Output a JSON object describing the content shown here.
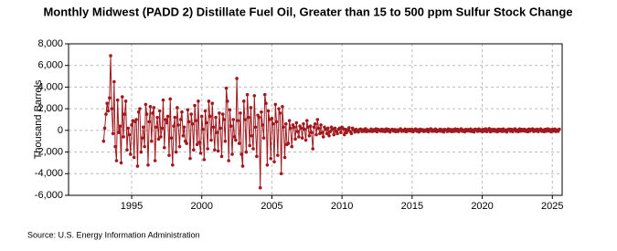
{
  "chart_data": {
    "type": "line",
    "title": "Monthly Midwest (PADD 2) Distillate Fuel Oil, Greater than 15 to 500 ppm Sulfur Stock Change",
    "ylabel": "Thousand Barrels",
    "source": "Source: U.S. Energy Information Administration",
    "xlim": [
      1990.5,
      2025.7
    ],
    "xticks": [
      1995,
      2000,
      2005,
      2010,
      2015,
      2020,
      2025
    ],
    "ylim": [
      -6000,
      8000
    ],
    "yticks": [
      {
        "value": -6000,
        "label": "-6,000"
      },
      {
        "value": -4000,
        "label": "-4,000"
      },
      {
        "value": -2000,
        "label": "-2,000"
      },
      0,
      {
        "value": 2000,
        "label": "2,000"
      },
      {
        "value": 4000,
        "label": "4,000"
      },
      {
        "value": 6000,
        "label": "6,000"
      },
      {
        "value": 8000,
        "label": "8,000"
      }
    ],
    "grid": true,
    "x": [
      1993,
      1993.08,
      1993.17,
      1993.25,
      1993.33,
      1993.42,
      1993.5,
      1993.58,
      1993.67,
      1993.75,
      1993.83,
      1993.92,
      1994,
      1994.08,
      1994.17,
      1994.25,
      1994.33,
      1994.42,
      1994.5,
      1994.58,
      1994.67,
      1994.75,
      1994.83,
      1994.92,
      1995,
      1995.08,
      1995.17,
      1995.25,
      1995.33,
      1995.42,
      1995.5,
      1995.58,
      1995.67,
      1995.75,
      1995.83,
      1995.92,
      1996,
      1996.08,
      1996.17,
      1996.25,
      1996.33,
      1996.42,
      1996.5,
      1996.58,
      1996.67,
      1996.75,
      1996.83,
      1996.92,
      1997,
      1997.08,
      1997.17,
      1997.25,
      1997.33,
      1997.42,
      1997.5,
      1997.58,
      1997.67,
      1997.75,
      1997.83,
      1997.92,
      1998,
      1998.08,
      1998.17,
      1998.25,
      1998.33,
      1998.42,
      1998.5,
      1998.58,
      1998.67,
      1998.75,
      1998.83,
      1998.92,
      1999,
      1999.08,
      1999.17,
      1999.25,
      1999.33,
      1999.42,
      1999.5,
      1999.58,
      1999.67,
      1999.75,
      1999.83,
      1999.92,
      2000,
      2000.08,
      2000.17,
      2000.25,
      2000.33,
      2000.42,
      2000.5,
      2000.58,
      2000.67,
      2000.75,
      2000.83,
      2000.92,
      2001,
      2001.08,
      2001.17,
      2001.25,
      2001.33,
      2001.42,
      2001.5,
      2001.58,
      2001.67,
      2001.75,
      2001.83,
      2001.92,
      2002,
      2002.08,
      2002.17,
      2002.25,
      2002.33,
      2002.42,
      2002.5,
      2002.58,
      2002.67,
      2002.75,
      2002.83,
      2002.92,
      2003,
      2003.08,
      2003.17,
      2003.25,
      2003.33,
      2003.42,
      2003.5,
      2003.58,
      2003.67,
      2003.75,
      2003.83,
      2003.92,
      2004,
      2004.08,
      2004.17,
      2004.25,
      2004.33,
      2004.42,
      2004.5,
      2004.58,
      2004.67,
      2004.75,
      2004.83,
      2004.92,
      2005,
      2005.08,
      2005.17,
      2005.25,
      2005.33,
      2005.42,
      2005.5,
      2005.58,
      2005.67,
      2005.75,
      2005.83,
      2005.92,
      2006,
      2006.08,
      2006.17,
      2006.25,
      2006.33,
      2006.42,
      2006.5,
      2006.58,
      2006.67,
      2006.75,
      2006.83,
      2006.92,
      2007,
      2007.08,
      2007.17,
      2007.25,
      2007.33,
      2007.42,
      2007.5,
      2007.58,
      2007.67,
      2007.75,
      2007.83,
      2007.92,
      2008,
      2008.08,
      2008.17,
      2008.25,
      2008.33,
      2008.42,
      2008.5,
      2008.58,
      2008.67,
      2008.75,
      2008.83,
      2008.92,
      2009,
      2009.08,
      2009.17,
      2009.25,
      2009.33,
      2009.42,
      2009.5,
      2009.58,
      2009.67,
      2009.75,
      2009.83,
      2009.92,
      2010,
      2010.08,
      2010.17,
      2010.25,
      2010.33,
      2010.42,
      2010.5,
      2010.58,
      2010.67,
      2010.75,
      2010.83,
      2010.92,
      2011,
      2011.08,
      2011.17,
      2011.25,
      2011.33,
      2011.42,
      2011.5,
      2011.58,
      2011.67,
      2011.75,
      2011.83,
      2011.92,
      2012,
      2012.08,
      2012.17,
      2012.25,
      2012.33,
      2012.42,
      2012.5,
      2012.58,
      2012.67,
      2012.75,
      2012.83,
      2012.92,
      2013,
      2013.08,
      2013.17,
      2013.25,
      2013.33,
      2013.42,
      2013.5,
      2013.58,
      2013.67,
      2013.75,
      2013.83,
      2013.92,
      2014,
      2014.08,
      2014.17,
      2014.25,
      2014.33,
      2014.42,
      2014.5,
      2014.58,
      2014.67,
      2014.75,
      2014.83,
      2014.92,
      2015,
      2015.08,
      2015.17,
      2015.25,
      2015.33,
      2015.42,
      2015.5,
      2015.58,
      2015.67,
      2015.75,
      2015.83,
      2015.92,
      2016,
      2016.08,
      2016.17,
      2016.25,
      2016.33,
      2016.42,
      2016.5,
      2016.58,
      2016.67,
      2016.75,
      2016.83,
      2016.92,
      2017,
      2017.08,
      2017.17,
      2017.25,
      2017.33,
      2017.42,
      2017.5,
      2017.58,
      2017.67,
      2017.75,
      2017.83,
      2017.92,
      2018,
      2018.08,
      2018.17,
      2018.25,
      2018.33,
      2018.42,
      2018.5,
      2018.58,
      2018.67,
      2018.75,
      2018.83,
      2018.92,
      2019,
      2019.08,
      2019.17,
      2019.25,
      2019.33,
      2019.42,
      2019.5,
      2019.58,
      2019.67,
      2019.75,
      2019.83,
      2019.92,
      2020,
      2020.08,
      2020.17,
      2020.25,
      2020.33,
      2020.42,
      2020.5,
      2020.58,
      2020.67,
      2020.75,
      2020.83,
      2020.92,
      2021,
      2021.08,
      2021.17,
      2021.25,
      2021.33,
      2021.42,
      2021.5,
      2021.58,
      2021.67,
      2021.75,
      2021.83,
      2021.92,
      2022,
      2022.08,
      2022.17,
      2022.25,
      2022.33,
      2022.42,
      2022.5,
      2022.58,
      2022.67,
      2022.75,
      2022.83,
      2022.92,
      2023,
      2023.08,
      2023.17,
      2023.25,
      2023.33,
      2023.42,
      2023.5,
      2023.58,
      2023.67,
      2023.75,
      2023.83,
      2023.92,
      2024,
      2024.08,
      2024.17,
      2024.25,
      2024.33,
      2024.42,
      2024.5,
      2024.58,
      2024.67,
      2024.75,
      2024.83,
      2024.92,
      2025,
      2025.08,
      2025.17,
      2025.25,
      2025.33,
      2025.42,
      2025.5
    ],
    "series": [
      {
        "color": "#a0191e",
        "values": [
          -1000,
          200,
          1500,
          2500,
          1800,
          3000,
          6900,
          2000,
          -300,
          4500,
          -1500,
          -2800,
          2800,
          -200,
          400,
          -3000,
          3100,
          -600,
          1500,
          2700,
          -1800,
          200,
          -400,
          -2200,
          500,
          900,
          -2500,
          800,
          1000,
          -3300,
          1700,
          2000,
          -2000,
          -700,
          300,
          -1500,
          2400,
          1500,
          -3200,
          800,
          2200,
          -1000,
          1600,
          2100,
          -2800,
          300,
          1200,
          -800,
          1800,
          -600,
          200,
          2800,
          -1600,
          1000,
          700,
          1300,
          -2300,
          2900,
          -700,
          -3200,
          400,
          1200,
          -2000,
          2100,
          500,
          -1500,
          1000,
          1700,
          -500,
          300,
          -1000,
          -1200,
          1900,
          800,
          -2600,
          1500,
          600,
          -1800,
          2300,
          900,
          -1300,
          2700,
          -1100,
          -2100,
          1300,
          100,
          -2700,
          1800,
          700,
          -1700,
          2700,
          1300,
          -900,
          2500,
          300,
          -1800,
          1200,
          -200,
          -1900,
          1600,
          200,
          -2400,
          1500,
          1000,
          -1000,
          3900,
          2700,
          -2800,
          1900,
          400,
          -2200,
          1000,
          -600,
          -900,
          4800,
          900,
          -1200,
          1600,
          -2200,
          -3300,
          2700,
          1000,
          -2000,
          3300,
          1200,
          -1400,
          2100,
          -500,
          -1700,
          3200,
          300,
          -2400,
          1400,
          1200,
          -5300,
          1700,
          500,
          -700,
          3300,
          2500,
          -3200,
          1800,
          1000,
          -2600,
          1100,
          600,
          -2900,
          2400,
          800,
          -2300,
          2000,
          1600,
          -4000,
          2200,
          300,
          -2500,
          600,
          -1300,
          -1200,
          900,
          200,
          -1500,
          500,
          300,
          -800,
          700,
          -100,
          -600,
          400,
          200,
          -700,
          600,
          100,
          -900,
          900,
          300,
          -500,
          400,
          -200,
          -1700,
          300,
          600,
          -400,
          1000,
          200,
          -300,
          500,
          -200,
          -600,
          300,
          100,
          -300,
          200,
          -500,
          -100,
          300,
          100,
          -400,
          200,
          -100,
          -300,
          100,
          200,
          -200,
          300,
          150,
          -400,
          100,
          -200,
          50,
          250,
          -100,
          -300,
          200,
          50,
          -150,
          100,
          -50,
          -150,
          80,
          120,
          -100,
          60,
          -80,
          150,
          -120,
          40,
          -60,
          -80,
          120,
          -100,
          60,
          -40,
          140,
          -130,
          90,
          30,
          -70,
          110,
          -90,
          70,
          -110,
          130,
          -50,
          90,
          -140,
          40,
          100,
          -60,
          80,
          -120,
          50,
          -100,
          60,
          140,
          -90,
          30,
          -60,
          120,
          -130,
          80,
          -40,
          100,
          -70,
          90,
          -120,
          50,
          130,
          -80,
          60,
          -140,
          110,
          -30,
          70,
          -100,
          40,
          -60,
          100,
          -130,
          80,
          140,
          -90,
          50,
          -70,
          120,
          -110,
          30,
          -50,
          110,
          -80,
          60,
          -140,
          90,
          40,
          -100,
          130,
          -60,
          80,
          -120,
          70,
          -90,
          130,
          -50,
          100,
          -120,
          60,
          140,
          -80,
          40,
          -130,
          90,
          -40,
          80,
          -60,
          120,
          -100,
          50,
          -140,
          110,
          70,
          -90,
          130,
          -50,
          60,
          -120,
          90,
          -70,
          140,
          -110,
          50,
          160,
          -130,
          80,
          -60,
          100,
          -80,
          60,
          -130,
          110,
          -50,
          90,
          -100,
          130,
          -70,
          40,
          -140,
          80,
          120,
          -70,
          100,
          -120,
          60,
          140,
          -90,
          50,
          -110,
          130,
          -60,
          90,
          -40,
          100,
          -80,
          50,
          -130,
          120,
          -60,
          90,
          140,
          -100,
          70,
          -50,
          110,
          -110,
          60,
          130,
          -90,
          40,
          -120,
          100,
          -70,
          140,
          -50,
          80,
          -130,
          90,
          -60,
          120,
          -100,
          50,
          -80,
          110
        ]
      }
    ]
  }
}
